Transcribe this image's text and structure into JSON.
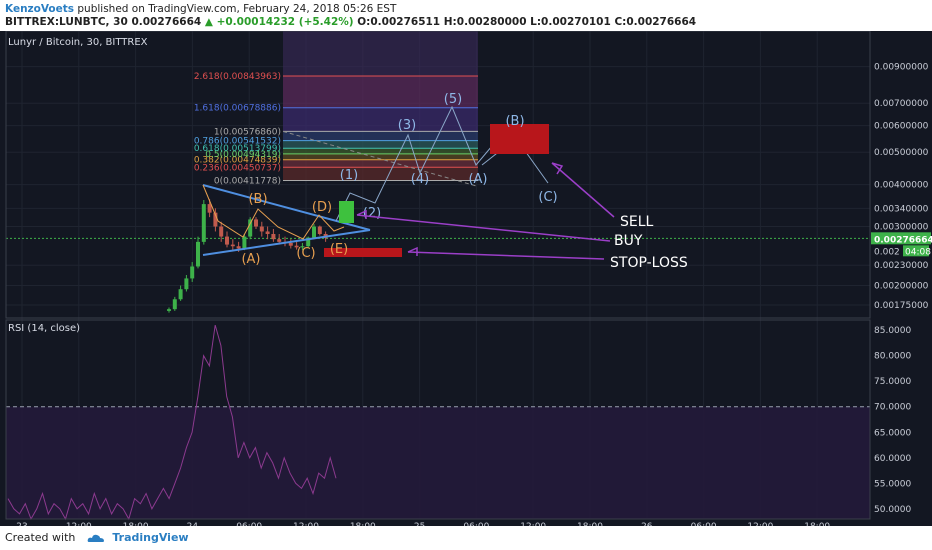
{
  "header": {
    "author": "KenzoVoets",
    "published_text": "published on TradingView.com, February 24, 2018 05:26 EST",
    "symbol_line": "BITTREX:LUNBTC, 30 0.00276664",
    "change": "▲ +0.00014232 (+5.42%)",
    "ohlc": "O:0.00276511 H:0.00280000 L:0.00270101 C:0.00276664"
  },
  "footer": {
    "created_with": "Created with",
    "brand": "TradingView"
  },
  "colors": {
    "background": "#131722",
    "panel_border": "#3a3f4b",
    "candle_up": "#3eb24a",
    "candle_down": "#c05a4d",
    "trend_line": "#4f8fe0",
    "wave_line": "#8aa6c8",
    "orange_labels": "#e8a050",
    "blue_labels": "#8fb8e8",
    "annotation_arrow": "#9b3fc8",
    "rsi_line": "#8c3a8f",
    "buy_box": "#3ec13e",
    "red_zone": "#b8161b",
    "text": "#ffffff"
  },
  "chart_data": [
    {
      "type": "candlestick",
      "title": "Lunyr / Bitcoin, 30, BITTREX",
      "x_ticks": [
        "23",
        "12:00",
        "18:00",
        "24",
        "06:00",
        "12:00",
        "18:00",
        "25",
        "06:00",
        "12:00",
        "18:00",
        "26",
        "06:00",
        "12:00",
        "18:00"
      ],
      "y_ticks": [
        "0.00900000",
        "0.00700000",
        "0.00600000",
        "0.00500000",
        "0.00400000",
        "0.00340000",
        "0.00300000",
        "0.00230000",
        "0.00200000",
        "0.00175000"
      ],
      "y_scale": "log",
      "ylim": [
        0.0016,
        0.0115
      ],
      "last_price": "0.00276664",
      "last_tag_partial": "0.002",
      "last_tag_time": "04:08",
      "candles": [
        {
          "o": 0.00168,
          "h": 0.00172,
          "l": 0.00166,
          "c": 0.0017
        },
        {
          "o": 0.0017,
          "h": 0.00185,
          "l": 0.00168,
          "c": 0.00182
        },
        {
          "o": 0.00182,
          "h": 0.002,
          "l": 0.0018,
          "c": 0.00195
        },
        {
          "o": 0.00195,
          "h": 0.00215,
          "l": 0.00192,
          "c": 0.0021
        },
        {
          "o": 0.0021,
          "h": 0.00235,
          "l": 0.00205,
          "c": 0.00228
        },
        {
          "o": 0.00228,
          "h": 0.0028,
          "l": 0.00225,
          "c": 0.0027
        },
        {
          "o": 0.0027,
          "h": 0.0036,
          "l": 0.00265,
          "c": 0.0035
        },
        {
          "o": 0.0035,
          "h": 0.00362,
          "l": 0.0032,
          "c": 0.0033
        },
        {
          "o": 0.0033,
          "h": 0.0034,
          "l": 0.0029,
          "c": 0.003
        },
        {
          "o": 0.003,
          "h": 0.0031,
          "l": 0.0027,
          "c": 0.0028
        },
        {
          "o": 0.0028,
          "h": 0.0029,
          "l": 0.0026,
          "c": 0.00265
        },
        {
          "o": 0.00265,
          "h": 0.00275,
          "l": 0.00255,
          "c": 0.00262
        },
        {
          "o": 0.00262,
          "h": 0.0027,
          "l": 0.00252,
          "c": 0.00258
        },
        {
          "o": 0.00258,
          "h": 0.00285,
          "l": 0.00255,
          "c": 0.0028
        },
        {
          "o": 0.0028,
          "h": 0.0032,
          "l": 0.00275,
          "c": 0.00315
        },
        {
          "o": 0.00315,
          "h": 0.0032,
          "l": 0.00295,
          "c": 0.003
        },
        {
          "o": 0.003,
          "h": 0.0031,
          "l": 0.0028,
          "c": 0.0029
        },
        {
          "o": 0.0029,
          "h": 0.003,
          "l": 0.00275,
          "c": 0.00285
        },
        {
          "o": 0.00285,
          "h": 0.00295,
          "l": 0.0027,
          "c": 0.00275
        },
        {
          "o": 0.00275,
          "h": 0.00285,
          "l": 0.00265,
          "c": 0.0027
        },
        {
          "o": 0.0027,
          "h": 0.0028,
          "l": 0.00262,
          "c": 0.00268
        },
        {
          "o": 0.00268,
          "h": 0.00275,
          "l": 0.00258,
          "c": 0.00263
        },
        {
          "o": 0.00263,
          "h": 0.00272,
          "l": 0.00256,
          "c": 0.0026
        },
        {
          "o": 0.0026,
          "h": 0.00268,
          "l": 0.00255,
          "c": 0.00262
        },
        {
          "o": 0.00262,
          "h": 0.0028,
          "l": 0.0026,
          "c": 0.00278
        },
        {
          "o": 0.00278,
          "h": 0.00305,
          "l": 0.00275,
          "c": 0.003
        },
        {
          "o": 0.003,
          "h": 0.00302,
          "l": 0.00282,
          "c": 0.00285
        },
        {
          "o": 0.00285,
          "h": 0.0029,
          "l": 0.0027,
          "c": 0.00277
        }
      ],
      "fib_levels": [
        {
          "label": "0(0.00411778)",
          "value": 0.00411778
        },
        {
          "label": "0.236(0.00450737)",
          "value": 0.00450737
        },
        {
          "label": "0.382(0.00474839)",
          "value": 0.00474839
        },
        {
          "label": "0.5(0.00494319)",
          "value": 0.00494319
        },
        {
          "label": "0.618(0.00513799)",
          "value": 0.00513799
        },
        {
          "label": "0.786(0.00541532)",
          "value": 0.00541532
        },
        {
          "label": "1(0.00576860)",
          "value": 0.0057686
        },
        {
          "label": "1.618(0.00678886)",
          "value": 0.00678886
        },
        {
          "label": "2.618(0.00843963)",
          "value": 0.00843963
        }
      ],
      "wave_labels": [
        "(A)",
        "(B)",
        "(C)",
        "(D)",
        "(E)",
        "(1)",
        "(2)",
        "(3)",
        "(4)",
        "(5)",
        "(A)",
        "(B)",
        "(C)"
      ],
      "annotations": [
        "SELL",
        "BUY",
        "STOP-LOSS"
      ]
    },
    {
      "type": "line",
      "title": "RSI (14, close)",
      "y_ticks": [
        "85.0000",
        "80.0000",
        "75.0000",
        "70.0000",
        "65.0000",
        "60.0000",
        "55.0000",
        "50.0000"
      ],
      "ylim": [
        48,
        87
      ],
      "band": [
        30,
        70
      ],
      "values": [
        52,
        50,
        49,
        51,
        48,
        50,
        53,
        49,
        51,
        50,
        48,
        52,
        50,
        51,
        49,
        53,
        50,
        52,
        49,
        51,
        50,
        48,
        52,
        51,
        53,
        50,
        52,
        54,
        52,
        55,
        58,
        62,
        65,
        72,
        80,
        78,
        86,
        82,
        72,
        68,
        60,
        63,
        60,
        62,
        58,
        61,
        59,
        56,
        60,
        57,
        55,
        54,
        56,
        53,
        57,
        56,
        60,
        56
      ]
    }
  ]
}
